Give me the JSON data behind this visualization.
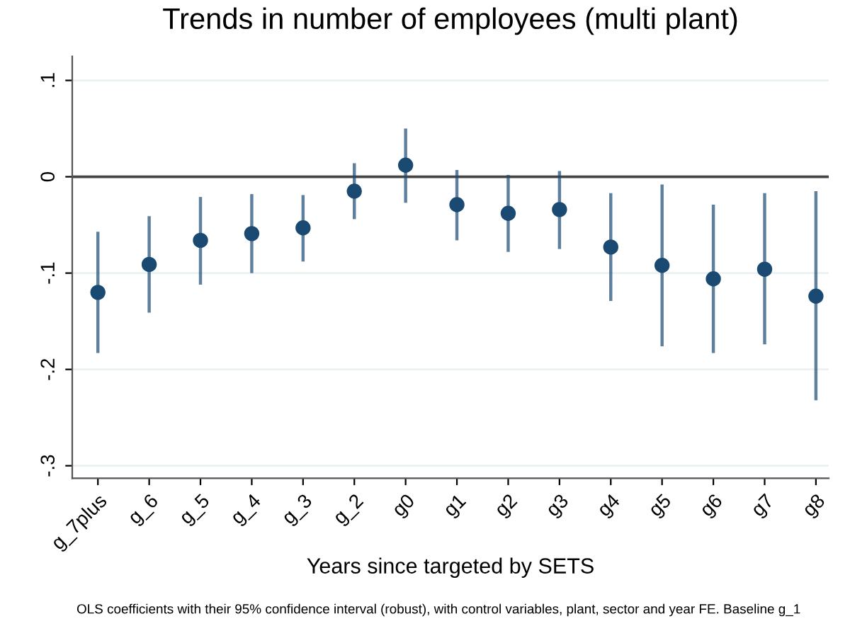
{
  "chart_data": {
    "type": "scatter",
    "title": "Trends in number of employees (multi plant)",
    "xlabel": "Years since targeted by SETS",
    "annotations": [
      "OLS coefficients with their 95% confidence interval (robust), with control variables, plant, sector and year FE. Baseline g_1"
    ],
    "categories": [
      "g_7plus",
      "g_6",
      "g_5",
      "g_4",
      "g_3",
      "g_2",
      "g0",
      "g1",
      "g2",
      "g3",
      "g4",
      "g5",
      "g6",
      "g7",
      "g8"
    ],
    "series": [
      {
        "color": "#1a4a72",
        "values": [
          -0.12,
          -0.091,
          -0.066,
          -0.059,
          -0.053,
          -0.015,
          0.012,
          -0.029,
          -0.038,
          -0.034,
          -0.073,
          -0.092,
          -0.106,
          -0.096,
          -0.124
        ],
        "errors": [
          [
            -0.183,
            -0.057
          ],
          [
            -0.141,
            -0.041
          ],
          [
            -0.112,
            -0.021
          ],
          [
            -0.1,
            -0.018
          ],
          [
            -0.088,
            -0.019
          ],
          [
            -0.044,
            0.014
          ],
          [
            -0.027,
            0.05
          ],
          [
            -0.066,
            0.007
          ],
          [
            -0.078,
            0.002
          ],
          [
            -0.075,
            0.006
          ],
          [
            -0.129,
            -0.017
          ],
          [
            -0.176,
            -0.008
          ],
          [
            -0.183,
            -0.029
          ],
          [
            -0.174,
            -0.017
          ],
          [
            -0.232,
            -0.015
          ]
        ]
      }
    ],
    "ylim": [
      -0.313,
      0.125
    ],
    "yticks": [
      {
        "value": -0.3,
        "label": "-.3"
      },
      {
        "value": -0.2,
        "label": "-.2"
      },
      {
        "value": -0.1,
        "label": "-.1"
      },
      {
        "value": 0,
        "label": "0"
      },
      {
        "value": 0.1,
        "label": ".1"
      }
    ],
    "ref_lines": [
      {
        "axis": "y",
        "value": 0,
        "color": "#444444"
      }
    ],
    "grid": "y",
    "marker": "circle",
    "legend": false
  }
}
